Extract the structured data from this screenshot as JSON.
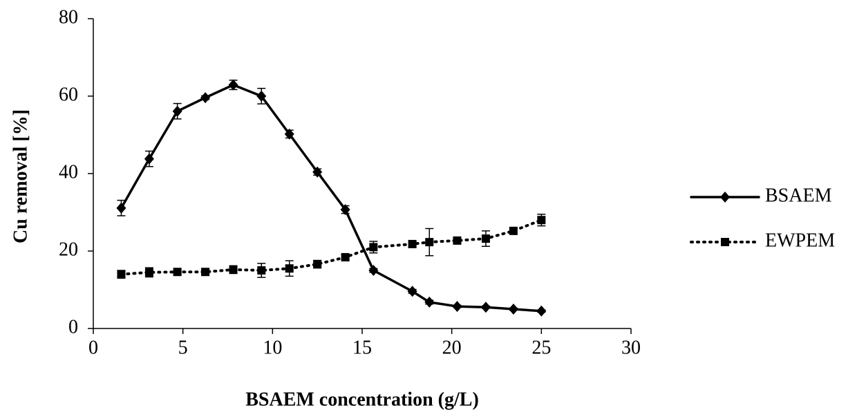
{
  "chart_data": {
    "type": "line",
    "x_label": "BSAEM concentration (g/L)",
    "y_label": "Cu removal [%]",
    "x": [
      1.56,
      3.12,
      4.69,
      6.25,
      7.81,
      9.38,
      10.94,
      12.5,
      14.06,
      15.63,
      17.8,
      18.75,
      20.3,
      21.9,
      23.44,
      25
    ],
    "series": [
      {
        "name": "BSAEM",
        "color": "#000000",
        "line_style": "solid",
        "marker": "diamond",
        "values": [
          31.1,
          43.8,
          56.1,
          59.6,
          62.9,
          60.0,
          50.2,
          40.4,
          30.7,
          15.0,
          9.6,
          6.8,
          5.7,
          5.5,
          5.0,
          4.5
        ],
        "errors": [
          2,
          2,
          2,
          0.5,
          1.2,
          2,
          1,
          0.8,
          1,
          0.5,
          0.5,
          0.5,
          0.3,
          0.3,
          0.3,
          0.3
        ]
      },
      {
        "name": "EWPEM",
        "color": "#000000",
        "line_style": "dotted",
        "marker": "square",
        "values": [
          14.0,
          14.5,
          14.6,
          14.6,
          15.2,
          15.0,
          15.5,
          16.6,
          18.4,
          21.0,
          21.8,
          22.3,
          22.7,
          23.2,
          25.2,
          28.0
        ],
        "errors": [
          1,
          1.2,
          0.5,
          0.5,
          1,
          1.8,
          2,
          1,
          0.7,
          1.5,
          0.7,
          3.5,
          0.6,
          2,
          0.5,
          1.5
        ]
      }
    ],
    "xlim": [
      0,
      30
    ],
    "xticks": [
      0,
      5,
      10,
      15,
      20,
      25,
      30
    ],
    "ylim": [
      0,
      80
    ],
    "yticks": [
      0,
      20,
      40,
      60,
      80
    ],
    "grid": false,
    "legend": "right"
  }
}
